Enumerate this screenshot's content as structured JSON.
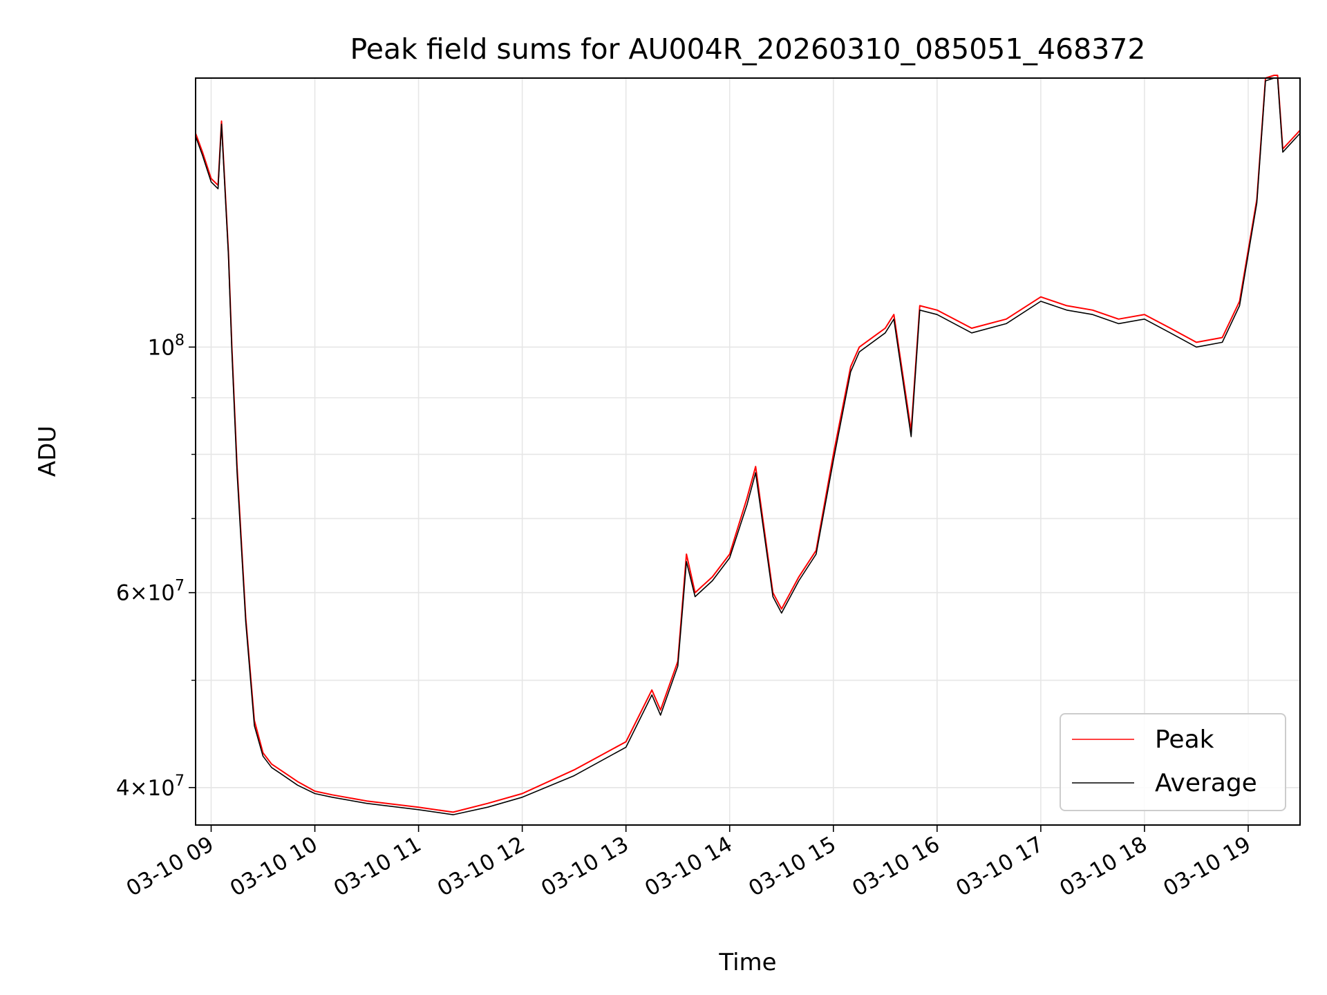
{
  "chart_data": {
    "type": "line",
    "title": "Peak field sums for AU004R_20260310_085051_468372",
    "xlabel": "Time",
    "ylabel": "ADU",
    "y_scale": "log",
    "ylim": [
      37000000,
      175000000
    ],
    "xlim": [
      "03-10 08:51",
      "03-10 19:30"
    ],
    "x_ticks": [
      "03-10 09",
      "03-10 10",
      "03-10 11",
      "03-10 12",
      "03-10 13",
      "03-10 14",
      "03-10 15",
      "03-10 16",
      "03-10 17",
      "03-10 18",
      "03-10 19"
    ],
    "y_ticks": [
      {
        "value": 40000000,
        "base": "4",
        "exp": "7"
      },
      {
        "value": 60000000,
        "base": "6",
        "exp": "7"
      },
      {
        "value": 100000000,
        "base": "",
        "exp": "8"
      }
    ],
    "grid": true,
    "legend_position": "lower-right",
    "x": [
      "03-10 08:51",
      "03-10 08:55",
      "03-10 09:00",
      "03-10 09:04",
      "03-10 09:06",
      "03-10 09:10",
      "03-10 09:12",
      "03-10 09:15",
      "03-10 09:20",
      "03-10 09:25",
      "03-10 09:30",
      "03-10 09:35",
      "03-10 09:40",
      "03-10 09:50",
      "03-10 10:00",
      "03-10 10:10",
      "03-10 10:30",
      "03-10 11:00",
      "03-10 11:20",
      "03-10 11:40",
      "03-10 12:00",
      "03-10 12:30",
      "03-10 13:00",
      "03-10 13:15",
      "03-10 13:20",
      "03-10 13:30",
      "03-10 13:35",
      "03-10 13:40",
      "03-10 13:50",
      "03-10 14:00",
      "03-10 14:10",
      "03-10 14:15",
      "03-10 14:25",
      "03-10 14:30",
      "03-10 14:40",
      "03-10 14:50",
      "03-10 15:00",
      "03-10 15:10",
      "03-10 15:15",
      "03-10 15:30",
      "03-10 15:35",
      "03-10 15:45",
      "03-10 15:50",
      "03-10 16:00",
      "03-10 16:20",
      "03-10 16:40",
      "03-10 17:00",
      "03-10 17:15",
      "03-10 17:30",
      "03-10 17:45",
      "03-10 18:00",
      "03-10 18:15",
      "03-10 18:30",
      "03-10 18:45",
      "03-10 18:55",
      "03-10 19:05",
      "03-10 19:10",
      "03-10 19:15",
      "03-10 19:17",
      "03-10 19:20",
      "03-10 19:30"
    ],
    "series": [
      {
        "name": "Peak",
        "color": "#ff0000",
        "values": [
          156000000,
          150000000,
          142000000,
          140000000,
          160000000,
          122000000,
          100000000,
          78000000,
          57000000,
          46000000,
          43000000,
          42000000,
          41500000,
          40500000,
          39700000,
          39400000,
          38900000,
          38400000,
          38000000,
          38700000,
          39500000,
          41500000,
          44000000,
          49000000,
          47000000,
          52000000,
          65000000,
          60000000,
          62000000,
          65000000,
          73000000,
          78000000,
          60000000,
          58000000,
          62000000,
          65500000,
          80000000,
          96000000,
          100000000,
          104000000,
          107000000,
          84000000,
          109000000,
          108000000,
          104000000,
          106000000,
          111000000,
          109000000,
          108000000,
          106000000,
          107000000,
          104000000,
          101000000,
          102000000,
          110000000,
          136000000,
          175000000,
          176000000,
          176000000,
          151000000,
          157000000
        ]
      },
      {
        "name": "Average",
        "color": "#000000",
        "values": [
          155000000,
          149000000,
          141000000,
          139000000,
          159000000,
          121000000,
          99000000,
          77000000,
          56500000,
          45500000,
          42700000,
          41700000,
          41200000,
          40200000,
          39500000,
          39200000,
          38700000,
          38200000,
          37800000,
          38400000,
          39200000,
          41000000,
          43500000,
          48500000,
          46500000,
          51500000,
          64000000,
          59500000,
          61500000,
          64500000,
          72000000,
          77000000,
          59500000,
          57500000,
          61500000,
          65000000,
          79000000,
          95000000,
          99000000,
          103000000,
          106000000,
          83000000,
          108000000,
          107000000,
          103000000,
          105000000,
          110000000,
          108000000,
          107000000,
          105000000,
          106000000,
          103000000,
          100000000,
          101000000,
          109000000,
          135000000,
          174000000,
          175000000,
          175000000,
          150000000,
          156000000
        ]
      }
    ]
  }
}
